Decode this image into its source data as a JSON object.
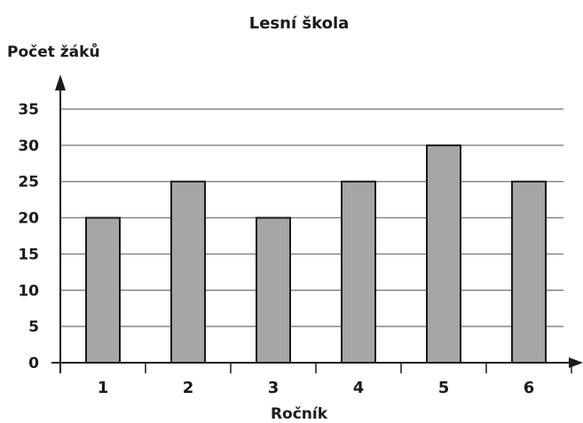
{
  "chart_data": {
    "type": "bar",
    "title": "Lesní škola",
    "ylabel": "Počet žáků",
    "xlabel": "Ročník",
    "categories": [
      "1",
      "2",
      "3",
      "4",
      "5",
      "6"
    ],
    "values": [
      20,
      25,
      20,
      25,
      30,
      25
    ],
    "ylim": [
      0,
      35
    ],
    "yticks": [
      0,
      5,
      10,
      15,
      20,
      25,
      30,
      35
    ],
    "grid": true,
    "legend": "none",
    "bar_color": "#a6a6a6",
    "bar_outline_color": "#1a1a1a",
    "grid_color": "#6f6f6f"
  }
}
